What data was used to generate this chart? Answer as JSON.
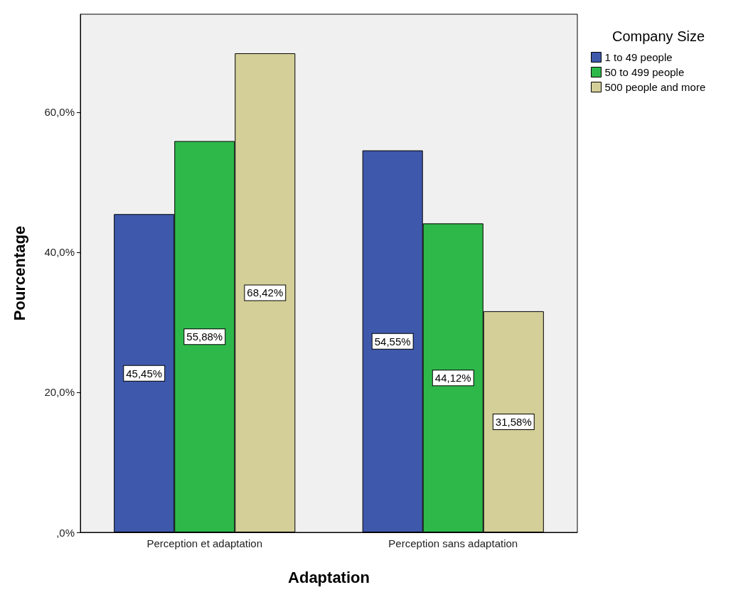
{
  "chart_data": {
    "type": "bar",
    "xlabel": "Adaptation",
    "ylabel": "Pourcentage",
    "legend_title": "Company Size",
    "categories": [
      "Perception et adaptation",
      "Perception sans adaptation"
    ],
    "series": [
      {
        "name": "1 to 49 people",
        "color": "#3e58ac",
        "values": [
          45.45,
          54.55
        ],
        "value_labels": [
          "45,45%",
          "54,55%"
        ]
      },
      {
        "name": "50 to 499 people",
        "color": "#2eb84a",
        "values": [
          55.88,
          44.12
        ],
        "value_labels": [
          "55,88%",
          "44,12%"
        ]
      },
      {
        "name": "500 people and more",
        "color": "#d4cf98",
        "values": [
          68.42,
          31.58
        ],
        "value_labels": [
          "68,42%",
          "31,58%"
        ]
      }
    ],
    "ylim": [
      0,
      74
    ],
    "yticks": [
      {
        "value": 0,
        "label": ",0%"
      },
      {
        "value": 20,
        "label": "20,0%"
      },
      {
        "value": 40,
        "label": "40,0%"
      },
      {
        "value": 60,
        "label": "60,0%"
      }
    ],
    "grid": false,
    "legend": "top right"
  }
}
